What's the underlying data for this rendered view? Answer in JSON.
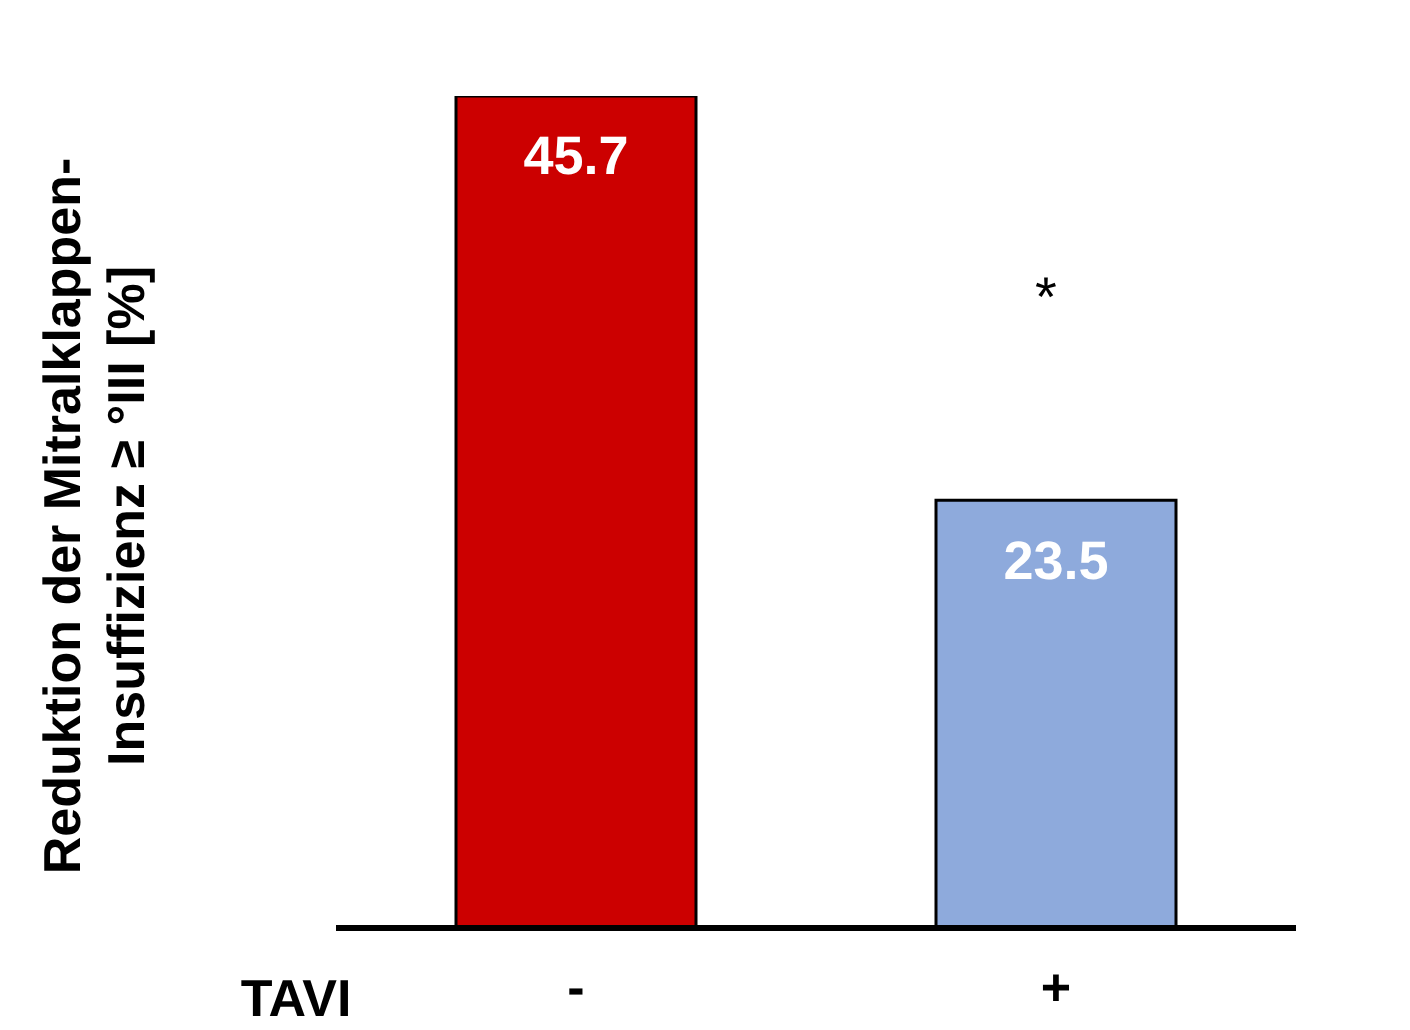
{
  "chart_data": {
    "type": "bar",
    "ylabel": "Reduktion der Mitralklappen-\nInsuffizienz ≥ °III [%]",
    "xlabel": "TAVI",
    "categories": [
      "-",
      "+"
    ],
    "values": [
      45.7,
      23.5
    ],
    "colors": [
      "#cc0000",
      "#8eaadc"
    ],
    "tick_labels": "x",
    "data_labels": true,
    "grid": false,
    "legend": false,
    "annotations": [
      "*"
    ]
  }
}
